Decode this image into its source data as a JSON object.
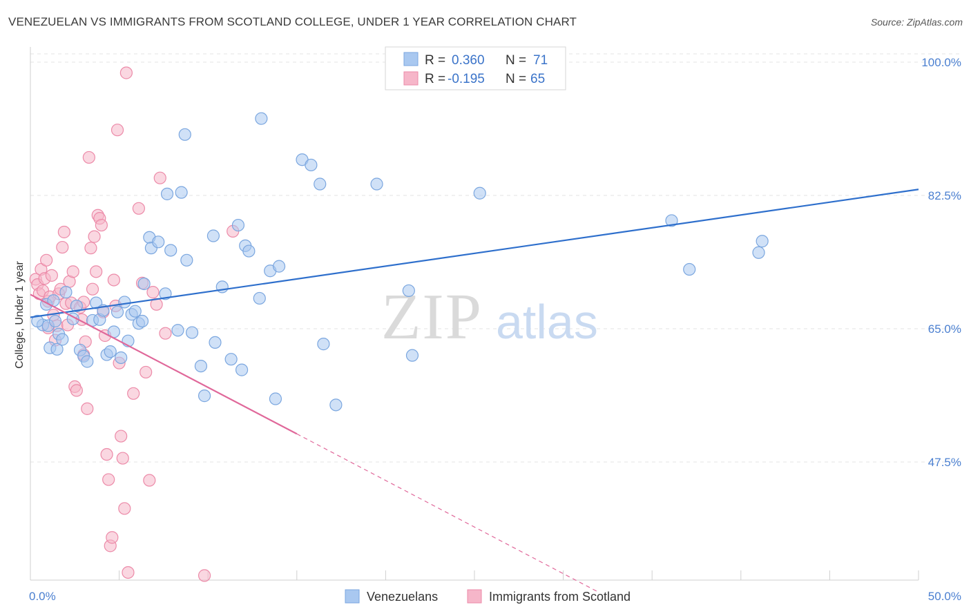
{
  "title": "VENEZUELAN VS IMMIGRANTS FROM SCOTLAND COLLEGE, UNDER 1 YEAR CORRELATION CHART",
  "source": "Source: ZipAtlas.com",
  "watermark": {
    "zip": "ZIP",
    "atlas": "atlas"
  },
  "colors": {
    "blue_fill": "#a9c8f0",
    "blue_stroke": "#7aa6df",
    "blue_line": "#2e6fcc",
    "pink_fill": "#f6b6c9",
    "pink_stroke": "#ec8aa8",
    "pink_line": "#e0689a",
    "tick_label": "#4a7fd0",
    "grid": "#e3e3e3"
  },
  "legend": {
    "rows": [
      {
        "r_label": "R =",
        "r_value": "0.360",
        "n_label": "N =",
        "n_value": "71"
      },
      {
        "r_label": "R =",
        "r_value": "-0.195",
        "n_label": "N =",
        "n_value": "65"
      }
    ]
  },
  "bottom_legend": {
    "items": [
      {
        "label": "Venezuelans"
      },
      {
        "label": "Immigrants from Scotland"
      }
    ]
  },
  "chart_data": {
    "type": "scatter",
    "title": "VENEZUELAN VS IMMIGRANTS FROM SCOTLAND COLLEGE, UNDER 1 YEAR CORRELATION CHART",
    "xlabel": "",
    "ylabel": "College, Under 1 year",
    "xlim": [
      0,
      50
    ],
    "ylim": [
      32,
      102
    ],
    "x_ticks_labeled": [
      "0.0%",
      "50.0%"
    ],
    "y_ticks": [
      47.5,
      65.0,
      82.5,
      100.0
    ],
    "y_tick_labels": [
      "47.5%",
      "65.0%",
      "82.5%",
      "100.0%"
    ],
    "grid": true,
    "legend_position": "top-center",
    "series": [
      {
        "name": "Venezuelans",
        "r": 0.36,
        "n": 71,
        "trend": {
          "x0": 0,
          "y0": 66.5,
          "x1": 50,
          "y1": 83.3
        },
        "points": [
          [
            0.7,
            65.5
          ],
          [
            0.9,
            68.2
          ],
          [
            1.0,
            65.4
          ],
          [
            1.1,
            62.5
          ],
          [
            1.3,
            68.7
          ],
          [
            1.5,
            62.3
          ],
          [
            1.6,
            64.3
          ],
          [
            1.8,
            63.6
          ],
          [
            2.0,
            69.8
          ],
          [
            2.4,
            66.3
          ],
          [
            2.6,
            68.0
          ],
          [
            2.8,
            62.2
          ],
          [
            3.0,
            61.4
          ],
          [
            3.2,
            60.7
          ],
          [
            3.5,
            66.1
          ],
          [
            3.7,
            68.4
          ],
          [
            3.9,
            66.2
          ],
          [
            4.1,
            67.4
          ],
          [
            4.3,
            61.6
          ],
          [
            4.5,
            62.0
          ],
          [
            4.7,
            64.6
          ],
          [
            4.9,
            67.2
          ],
          [
            5.1,
            61.2
          ],
          [
            5.3,
            68.5
          ],
          [
            5.5,
            63.4
          ],
          [
            5.7,
            66.9
          ],
          [
            5.9,
            67.3
          ],
          [
            6.1,
            65.7
          ],
          [
            6.3,
            66.0
          ],
          [
            6.4,
            70.9
          ],
          [
            6.7,
            77.0
          ],
          [
            6.8,
            75.6
          ],
          [
            7.2,
            76.4
          ],
          [
            7.6,
            69.6
          ],
          [
            7.7,
            82.7
          ],
          [
            7.9,
            75.3
          ],
          [
            8.3,
            64.8
          ],
          [
            8.5,
            82.9
          ],
          [
            8.7,
            90.5
          ],
          [
            8.8,
            74.0
          ],
          [
            9.1,
            64.5
          ],
          [
            9.6,
            60.1
          ],
          [
            9.8,
            56.2
          ],
          [
            10.3,
            77.2
          ],
          [
            10.4,
            63.2
          ],
          [
            10.8,
            70.5
          ],
          [
            11.3,
            61.0
          ],
          [
            11.7,
            78.6
          ],
          [
            11.9,
            59.6
          ],
          [
            12.1,
            75.9
          ],
          [
            12.3,
            75.2
          ],
          [
            12.9,
            69.0
          ],
          [
            13.0,
            92.6
          ],
          [
            13.5,
            72.6
          ],
          [
            13.8,
            55.8
          ],
          [
            14.0,
            73.2
          ],
          [
            15.3,
            87.2
          ],
          [
            15.8,
            86.5
          ],
          [
            16.3,
            84.0
          ],
          [
            16.5,
            63.0
          ],
          [
            17.2,
            55.0
          ],
          [
            19.5,
            84.0
          ],
          [
            21.5,
            61.5
          ],
          [
            21.3,
            70.0
          ],
          [
            25.3,
            82.8
          ],
          [
            36.1,
            79.2
          ],
          [
            37.1,
            72.8
          ],
          [
            41.0,
            75.0
          ],
          [
            41.2,
            76.5
          ],
          [
            0.4,
            66.0
          ],
          [
            1.4,
            66.0
          ]
        ]
      },
      {
        "name": "Immigrants from Scotland",
        "r": -0.195,
        "n": 65,
        "trend": {
          "x0": 0,
          "y0": 69.5,
          "x1": 15,
          "y1": 51.2,
          "dashed_to": {
            "x": 32,
            "y": 30.4
          }
        },
        "points": [
          [
            0.3,
            71.5
          ],
          [
            0.4,
            70.8
          ],
          [
            0.5,
            69.6
          ],
          [
            0.6,
            72.8
          ],
          [
            0.7,
            70.0
          ],
          [
            0.8,
            71.6
          ],
          [
            0.9,
            74.0
          ],
          [
            1.0,
            68.6
          ],
          [
            1.1,
            69.2
          ],
          [
            1.2,
            72.0
          ],
          [
            1.3,
            66.8
          ],
          [
            1.4,
            63.5
          ],
          [
            1.5,
            65.4
          ],
          [
            1.6,
            69.6
          ],
          [
            1.7,
            70.2
          ],
          [
            1.8,
            75.7
          ],
          [
            1.9,
            77.7
          ],
          [
            2.0,
            68.3
          ],
          [
            2.1,
            65.5
          ],
          [
            2.2,
            71.2
          ],
          [
            2.3,
            68.4
          ],
          [
            2.4,
            72.5
          ],
          [
            2.5,
            57.4
          ],
          [
            2.6,
            56.9
          ],
          [
            2.8,
            67.8
          ],
          [
            2.9,
            66.2
          ],
          [
            3.0,
            61.6
          ],
          [
            3.1,
            63.3
          ],
          [
            3.2,
            54.5
          ],
          [
            3.3,
            87.5
          ],
          [
            3.4,
            75.6
          ],
          [
            3.5,
            70.2
          ],
          [
            3.6,
            77.1
          ],
          [
            3.7,
            72.5
          ],
          [
            3.8,
            79.9
          ],
          [
            3.9,
            79.5
          ],
          [
            4.0,
            78.6
          ],
          [
            4.1,
            67.2
          ],
          [
            4.2,
            64.1
          ],
          [
            4.3,
            48.5
          ],
          [
            4.4,
            45.2
          ],
          [
            4.5,
            36.5
          ],
          [
            4.6,
            37.6
          ],
          [
            4.7,
            71.4
          ],
          [
            4.8,
            68.0
          ],
          [
            4.9,
            91.1
          ],
          [
            5.0,
            60.5
          ],
          [
            5.1,
            50.9
          ],
          [
            5.2,
            48.0
          ],
          [
            5.3,
            41.4
          ],
          [
            5.4,
            98.6
          ],
          [
            5.5,
            33.0
          ],
          [
            5.8,
            56.5
          ],
          [
            6.1,
            80.8
          ],
          [
            6.3,
            71.0
          ],
          [
            6.5,
            59.3
          ],
          [
            6.7,
            45.1
          ],
          [
            6.9,
            69.8
          ],
          [
            7.1,
            68.2
          ],
          [
            7.3,
            84.8
          ],
          [
            7.6,
            64.4
          ],
          [
            9.8,
            32.6
          ],
          [
            11.4,
            77.8
          ],
          [
            3.0,
            68.5
          ],
          [
            1.0,
            65.1
          ]
        ]
      }
    ]
  }
}
